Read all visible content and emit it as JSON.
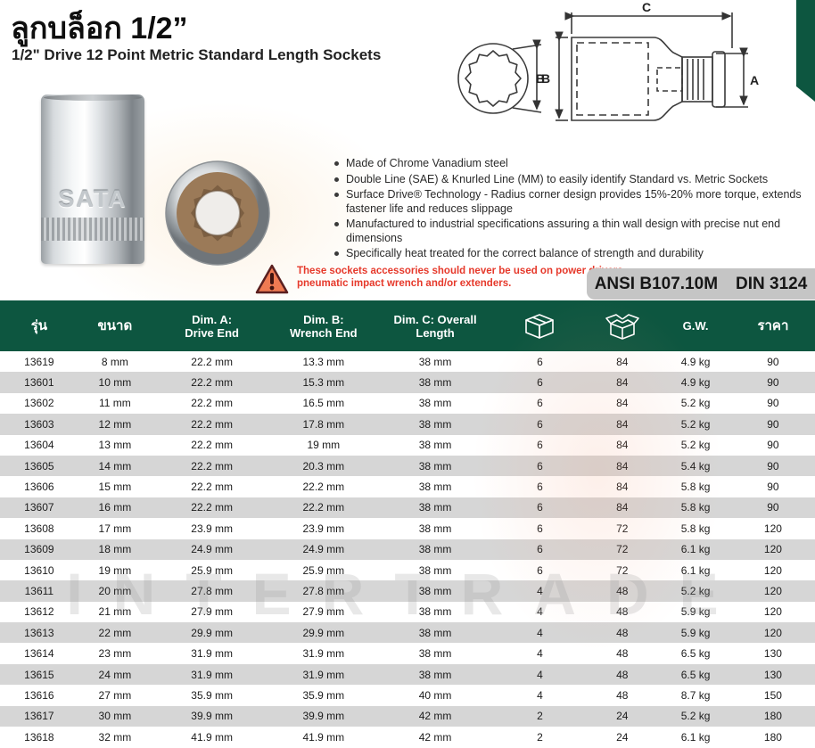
{
  "header": {
    "title": "ลูกบล็อก 1/2”",
    "subtitle": "1/2\" Drive 12 Point Metric Standard Length Sockets"
  },
  "product": {
    "brand_embossed": "SATA"
  },
  "diagram": {
    "label_a": "A",
    "label_b": "B",
    "label_c": "C",
    "icon": "socket-dimension-diagram"
  },
  "features": [
    "Made of Chrome Vanadium steel",
    "Double Line (SAE) & Knurled Line (MM) to easily identify Standard vs. Metric Sockets",
    "Surface Drive® Technology - Radius corner design provides 15%-20% more torque, extends fastener life and reduces slippage",
    "Manufactured to industrial specifications assuring a thin wall design with precise nut end dimensions",
    "Specifically heat treated for the correct balance of strength and durability"
  ],
  "warning": {
    "icon": "warning-triangle-icon",
    "line1": "These sockets accessories should never be used on power drivers,",
    "line2": "pneumatic impact wrench and/or extenders."
  },
  "standards": {
    "ansi": "ANSI B107.10M",
    "din": "DIN 3124"
  },
  "watermark": "INTERTRADE",
  "table": {
    "headers": {
      "model": "รุ่น",
      "size": "ขนาด",
      "dim_a_line1": "Dim. A:",
      "dim_a_line2": "Drive End",
      "dim_b_line1": "Dim. B:",
      "dim_b_line2": "Wrench End",
      "dim_c_line1": "Dim. C: Overall",
      "dim_c_line2": "Length",
      "inner_pack_icon": "closed-box-icon",
      "carton_icon": "open-box-icon",
      "gw": "G.W.",
      "price": "ราคา"
    },
    "rows": [
      [
        "13619",
        "8 mm",
        "22.2 mm",
        "13.3 mm",
        "38 mm",
        "6",
        "84",
        "4.9 kg",
        "90"
      ],
      [
        "13601",
        "10 mm",
        "22.2 mm",
        "15.3 mm",
        "38 mm",
        "6",
        "84",
        "4.9 kg",
        "90"
      ],
      [
        "13602",
        "11 mm",
        "22.2 mm",
        "16.5 mm",
        "38 mm",
        "6",
        "84",
        "5.2 kg",
        "90"
      ],
      [
        "13603",
        "12 mm",
        "22.2 mm",
        "17.8 mm",
        "38 mm",
        "6",
        "84",
        "5.2 kg",
        "90"
      ],
      [
        "13604",
        "13 mm",
        "22.2 mm",
        "19 mm",
        "38 mm",
        "6",
        "84",
        "5.2 kg",
        "90"
      ],
      [
        "13605",
        "14 mm",
        "22.2 mm",
        "20.3 mm",
        "38 mm",
        "6",
        "84",
        "5.4 kg",
        "90"
      ],
      [
        "13606",
        "15 mm",
        "22.2 mm",
        "22.2 mm",
        "38 mm",
        "6",
        "84",
        "5.8 kg",
        "90"
      ],
      [
        "13607",
        "16 mm",
        "22.2 mm",
        "22.2 mm",
        "38 mm",
        "6",
        "84",
        "5.8 kg",
        "90"
      ],
      [
        "13608",
        "17 mm",
        "23.9 mm",
        "23.9 mm",
        "38 mm",
        "6",
        "72",
        "5.8 kg",
        "120"
      ],
      [
        "13609",
        "18 mm",
        "24.9 mm",
        "24.9 mm",
        "38 mm",
        "6",
        "72",
        "6.1 kg",
        "120"
      ],
      [
        "13610",
        "19 mm",
        "25.9 mm",
        "25.9 mm",
        "38 mm",
        "6",
        "72",
        "6.1 kg",
        "120"
      ],
      [
        "13611",
        "20 mm",
        "27.8 mm",
        "27.8 mm",
        "38 mm",
        "4",
        "48",
        "5.2 kg",
        "120"
      ],
      [
        "13612",
        "21 mm",
        "27.9 mm",
        "27.9 mm",
        "38 mm",
        "4",
        "48",
        "5.9 kg",
        "120"
      ],
      [
        "13613",
        "22 mm",
        "29.9 mm",
        "29.9 mm",
        "38 mm",
        "4",
        "48",
        "5.9 kg",
        "120"
      ],
      [
        "13614",
        "23 mm",
        "31.9 mm",
        "31.9 mm",
        "38 mm",
        "4",
        "48",
        "6.5 kg",
        "130"
      ],
      [
        "13615",
        "24 mm",
        "31.9 mm",
        "31.9 mm",
        "38 mm",
        "4",
        "48",
        "6.5 kg",
        "130"
      ],
      [
        "13616",
        "27 mm",
        "35.9 mm",
        "35.9 mm",
        "40 mm",
        "4",
        "48",
        "8.7 kg",
        "150"
      ],
      [
        "13617",
        "30 mm",
        "39.9 mm",
        "39.9 mm",
        "42 mm",
        "2",
        "24",
        "5.2 kg",
        "180"
      ],
      [
        "13618",
        "32 mm",
        "41.9 mm",
        "41.9 mm",
        "42 mm",
        "2",
        "24",
        "6.1 kg",
        "180"
      ]
    ]
  },
  "colors": {
    "header_green": "#0d5640",
    "row_stripe_gray": "#d6d6d6",
    "warning_red": "#e6392b",
    "warning_triangle_fill": "#ef7a52",
    "badge_gray": "#c5c5c5"
  }
}
